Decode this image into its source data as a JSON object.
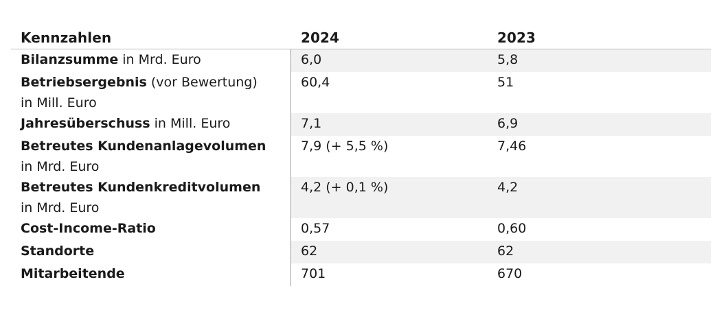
{
  "header": {
    "col1": "Kennzahlen",
    "col2": "2024",
    "col3": "2023"
  },
  "rows": [
    {
      "bold": "Bilanzsumme",
      "rest": " in Mrd. Euro",
      "line2": "",
      "v2024": "6,0",
      "v2023": "5,8",
      "shaded": true
    },
    {
      "bold": "Betriebsergebnis",
      "rest": " (vor Bewertung)",
      "line2": "in Mill.  Euro",
      "v2024": "60,4",
      "v2023": "51",
      "shaded": false
    },
    {
      "bold": "Jahresüberschuss",
      "rest": " in Mill. Euro",
      "line2": "",
      "v2024": "7,1",
      "v2023": "6,9",
      "shaded": true
    },
    {
      "bold": "Betreutes Kundenanlagevolumen",
      "rest": "",
      "line2": "in Mrd. Euro",
      "v2024": "7,9 (+ 5,5 %)",
      "v2023": "7,46",
      "shaded": false
    },
    {
      "bold": "Betreutes Kundenkreditvolumen",
      "rest": "",
      "line2": "in Mrd. Euro",
      "v2024": "4,2 (+ 0,1 %)",
      "v2023": "4,2",
      "shaded": true
    },
    {
      "bold": "Cost-Income-Ratio",
      "rest": "",
      "line2": "",
      "v2024": "0,57",
      "v2023": "0,60",
      "shaded": false
    },
    {
      "bold": "Standorte",
      "rest": "",
      "line2": "",
      "v2024": "62",
      "v2023": "62",
      "shaded": true
    },
    {
      "bold": "Mitarbeitende",
      "rest": "",
      "line2": "",
      "v2024": "701",
      "v2023": "670",
      "shaded": false
    }
  ]
}
